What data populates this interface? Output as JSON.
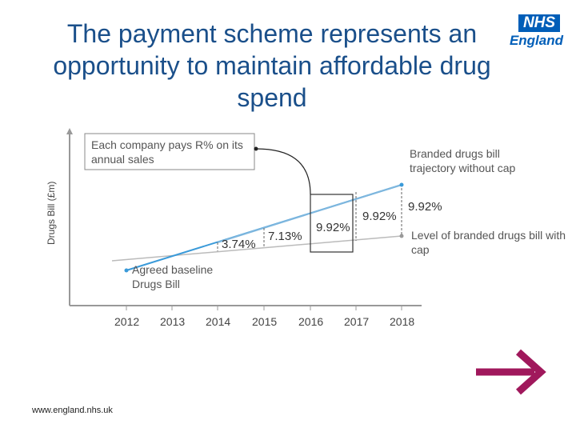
{
  "title": "The payment scheme represents an opportunity to maintain affordable drug spend",
  "logo": {
    "mark": "NHS",
    "name": "England",
    "color": "#005eb8"
  },
  "diagram": {
    "y_axis_label": "Drugs Bill (£m)",
    "callout_text": "Each company pays R% on its annual sales",
    "trajectory_label": "Branded drugs bill trajectory without cap",
    "cap_label": "Level of branded drugs bill with cap",
    "baseline_label": "Agreed baseline Drugs Bill",
    "years": [
      "2012",
      "2013",
      "2014",
      "2015",
      "2016",
      "2017",
      "2018"
    ],
    "rebates": [
      {
        "year": "2014",
        "label": "3.74%"
      },
      {
        "year": "2015",
        "label": "7.13%"
      },
      {
        "year": "2016",
        "label": "9.92%"
      },
      {
        "year": "2017",
        "label": "9.92%"
      },
      {
        "year": "2018",
        "label": "9.92%"
      }
    ],
    "colors": {
      "trajectory": "#3a9ad9",
      "cap": "#999999",
      "arrow": "#a0185c"
    }
  },
  "footer": {
    "url": "www.england.nhs.uk"
  }
}
